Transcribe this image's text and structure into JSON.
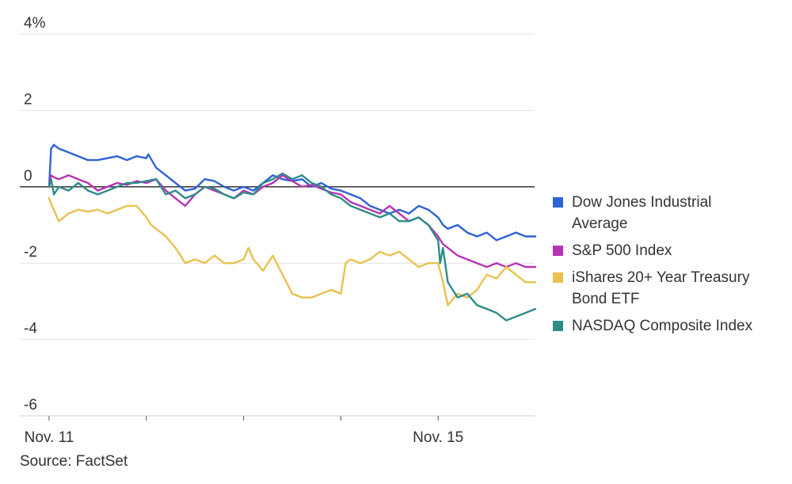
{
  "chart_data": {
    "type": "line",
    "title": "",
    "xlabel": "",
    "ylabel": "",
    "ylim": [
      -6,
      4
    ],
    "y_ticks": [
      {
        "value": 4,
        "label": "4%"
      },
      {
        "value": 2,
        "label": "2"
      },
      {
        "value": 0,
        "label": "0"
      },
      {
        "value": -2,
        "label": "-2"
      },
      {
        "value": -4,
        "label": "-4"
      },
      {
        "value": -6,
        "label": "-6"
      }
    ],
    "xlim": [
      0,
      5
    ],
    "x_ticks": [
      {
        "value": 0,
        "label": "Nov. 11"
      },
      {
        "value": 1,
        "label": ""
      },
      {
        "value": 2,
        "label": ""
      },
      {
        "value": 3,
        "label": ""
      },
      {
        "value": 4,
        "label": "Nov. 15"
      }
    ],
    "zero_line": true,
    "grid": true,
    "legend_position": "right",
    "series": [
      {
        "name": "Dow Jones Industrial Average",
        "name_lines": [
          "Dow Jones Industrial",
          "Average"
        ],
        "color": "#2e63d6",
        "x": [
          0,
          0.02,
          0.05,
          0.1,
          0.2,
          0.3,
          0.4,
          0.5,
          0.6,
          0.7,
          0.8,
          0.9,
          1.0,
          1.02,
          1.1,
          1.2,
          1.3,
          1.4,
          1.5,
          1.6,
          1.7,
          1.8,
          1.9,
          2.0,
          2.1,
          2.2,
          2.3,
          2.4,
          2.5,
          2.6,
          2.7,
          2.8,
          2.9,
          3.0,
          3.1,
          3.2,
          3.3,
          3.4,
          3.5,
          3.6,
          3.7,
          3.8,
          3.9,
          4.0,
          4.05,
          4.1,
          4.2,
          4.3,
          4.4,
          4.5,
          4.6,
          4.7,
          4.8,
          4.9,
          5.0
        ],
        "values": [
          0.0,
          1.0,
          1.1,
          1.0,
          0.9,
          0.8,
          0.7,
          0.7,
          0.75,
          0.8,
          0.7,
          0.8,
          0.75,
          0.85,
          0.5,
          0.3,
          0.1,
          -0.1,
          -0.05,
          0.2,
          0.15,
          0.0,
          -0.1,
          0.0,
          -0.1,
          0.1,
          0.3,
          0.2,
          0.15,
          0.2,
          0.0,
          0.1,
          -0.05,
          -0.1,
          -0.2,
          -0.3,
          -0.5,
          -0.6,
          -0.7,
          -0.6,
          -0.7,
          -0.5,
          -0.6,
          -0.8,
          -1.0,
          -1.1,
          -1.0,
          -1.2,
          -1.3,
          -1.2,
          -1.4,
          -1.3,
          -1.2,
          -1.3,
          -1.3
        ]
      },
      {
        "name": "S&P 500 Index",
        "name_lines": [
          "S&P 500 Index"
        ],
        "color": "#b535b5",
        "x": [
          0,
          0.02,
          0.05,
          0.1,
          0.2,
          0.3,
          0.4,
          0.5,
          0.6,
          0.7,
          0.8,
          0.9,
          1.0,
          1.1,
          1.2,
          1.3,
          1.4,
          1.5,
          1.6,
          1.7,
          1.8,
          1.9,
          2.0,
          2.1,
          2.2,
          2.3,
          2.4,
          2.5,
          2.6,
          2.7,
          2.8,
          2.9,
          3.0,
          3.1,
          3.2,
          3.3,
          3.4,
          3.5,
          3.6,
          3.7,
          3.8,
          3.9,
          4.0,
          4.05,
          4.1,
          4.2,
          4.3,
          4.4,
          4.5,
          4.6,
          4.7,
          4.8,
          4.9,
          5.0
        ],
        "values": [
          0.0,
          0.3,
          0.25,
          0.2,
          0.3,
          0.2,
          0.1,
          -0.1,
          0.0,
          0.1,
          0.05,
          0.15,
          0.1,
          0.2,
          -0.1,
          -0.3,
          -0.5,
          -0.2,
          0.0,
          -0.1,
          -0.2,
          -0.3,
          -0.1,
          -0.2,
          0.0,
          0.1,
          0.3,
          0.15,
          0.0,
          0.05,
          -0.05,
          -0.15,
          -0.2,
          -0.4,
          -0.5,
          -0.6,
          -0.7,
          -0.5,
          -0.7,
          -0.9,
          -0.8,
          -1.0,
          -1.3,
          -1.5,
          -1.6,
          -1.8,
          -1.9,
          -2.0,
          -2.1,
          -2.0,
          -2.1,
          -2.0,
          -2.1,
          -2.1
        ]
      },
      {
        "name": "iShares 20+ Year Treasury Bond ETF",
        "name_lines": [
          "iShares 20+ Year Treasury",
          "Bond ETF"
        ],
        "color": "#eac14f",
        "x": [
          0,
          0.03,
          0.1,
          0.2,
          0.3,
          0.4,
          0.5,
          0.6,
          0.7,
          0.8,
          0.9,
          1.0,
          1.05,
          1.1,
          1.2,
          1.3,
          1.4,
          1.5,
          1.6,
          1.7,
          1.8,
          1.9,
          2.0,
          2.05,
          2.1,
          2.2,
          2.3,
          2.4,
          2.5,
          2.6,
          2.7,
          2.8,
          2.9,
          3.0,
          3.05,
          3.1,
          3.2,
          3.3,
          3.4,
          3.5,
          3.6,
          3.7,
          3.8,
          3.9,
          4.0,
          4.05,
          4.1,
          4.2,
          4.3,
          4.4,
          4.5,
          4.6,
          4.7,
          4.8,
          4.9,
          5.0
        ],
        "values": [
          -0.3,
          -0.5,
          -0.9,
          -0.7,
          -0.6,
          -0.65,
          -0.6,
          -0.7,
          -0.6,
          -0.5,
          -0.5,
          -0.8,
          -1.0,
          -1.1,
          -1.3,
          -1.6,
          -2.0,
          -1.9,
          -2.0,
          -1.8,
          -2.0,
          -2.0,
          -1.9,
          -1.6,
          -1.9,
          -2.2,
          -1.8,
          -2.3,
          -2.8,
          -2.9,
          -2.9,
          -2.8,
          -2.7,
          -2.8,
          -2.0,
          -1.9,
          -2.0,
          -1.9,
          -1.7,
          -1.8,
          -1.7,
          -1.9,
          -2.1,
          -2.0,
          -2.0,
          -2.5,
          -3.1,
          -2.8,
          -2.9,
          -2.7,
          -2.3,
          -2.4,
          -2.1,
          -2.3,
          -2.5,
          -2.5
        ]
      },
      {
        "name": "NASDAQ Composite Index",
        "name_lines": [
          "NASDAQ Composite Index"
        ],
        "color": "#2f8c88",
        "x": [
          0,
          0.02,
          0.05,
          0.1,
          0.2,
          0.3,
          0.4,
          0.5,
          0.6,
          0.7,
          0.8,
          0.9,
          1.0,
          1.1,
          1.2,
          1.3,
          1.4,
          1.5,
          1.6,
          1.7,
          1.8,
          1.9,
          2.0,
          2.1,
          2.2,
          2.3,
          2.4,
          2.5,
          2.6,
          2.7,
          2.8,
          2.9,
          3.0,
          3.1,
          3.2,
          3.3,
          3.4,
          3.5,
          3.6,
          3.7,
          3.8,
          3.9,
          4.0,
          4.02,
          4.05,
          4.1,
          4.2,
          4.3,
          4.4,
          4.5,
          4.6,
          4.7,
          4.8,
          4.9,
          5.0
        ],
        "values": [
          0.0,
          0.2,
          -0.2,
          0.0,
          -0.1,
          0.1,
          -0.1,
          -0.2,
          -0.1,
          0.0,
          0.1,
          0.1,
          0.15,
          0.2,
          -0.2,
          -0.1,
          -0.3,
          -0.2,
          0.0,
          -0.05,
          -0.2,
          -0.3,
          -0.15,
          -0.2,
          0.1,
          0.2,
          0.35,
          0.2,
          0.3,
          0.1,
          0.0,
          -0.2,
          -0.3,
          -0.5,
          -0.6,
          -0.7,
          -0.8,
          -0.7,
          -0.9,
          -0.9,
          -0.8,
          -1.0,
          -1.4,
          -2.0,
          -1.6,
          -2.5,
          -2.9,
          -2.8,
          -3.1,
          -3.2,
          -3.3,
          -3.5,
          -3.4,
          -3.3,
          -3.2
        ]
      }
    ]
  },
  "footer": {
    "source": "Source: FactSet"
  }
}
